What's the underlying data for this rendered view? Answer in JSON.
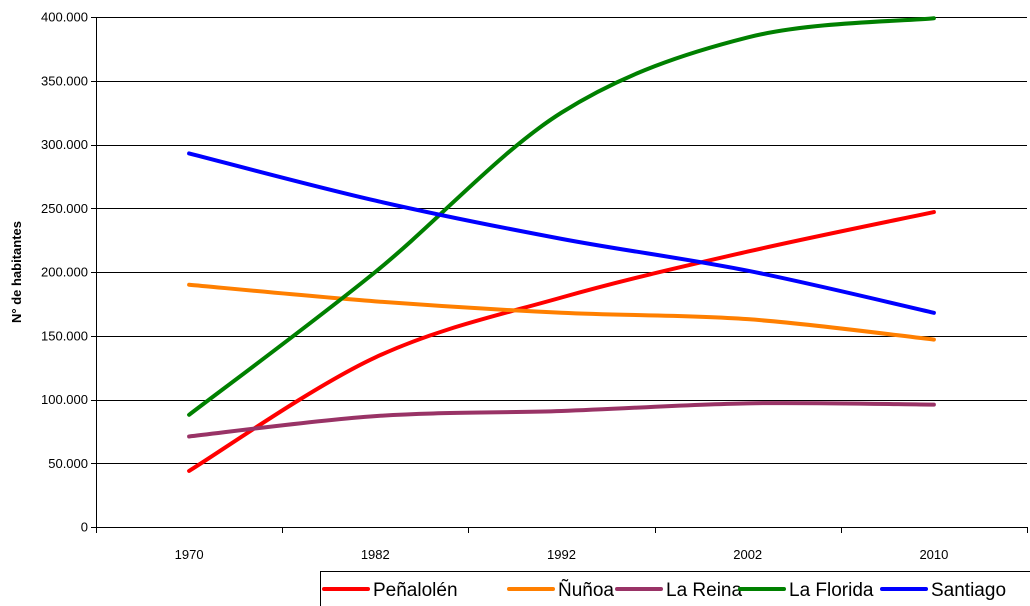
{
  "chart_data": {
    "type": "line",
    "title": "",
    "xlabel": "",
    "ylabel": "N° de habitantes",
    "categories": [
      "1970",
      "1982",
      "1992",
      "2002",
      "2010"
    ],
    "ylim": [
      0,
      400000
    ],
    "yticks": [
      0,
      50000,
      100000,
      150000,
      200000,
      250000,
      300000,
      350000,
      400000
    ],
    "ytick_labels": [
      "0",
      "50.000",
      "100.000",
      "150.000",
      "200.000",
      "250.000",
      "300.000",
      "350.000",
      "400.000"
    ],
    "grid": "horizontal",
    "legend_position": "bottom-right",
    "smooth": true,
    "series": [
      {
        "name": "Peñalolén",
        "color": "#ff0000",
        "values": [
          44000,
          133000,
          180000,
          216000,
          247000
        ]
      },
      {
        "name": "Ñuñoa",
        "color": "#ff7f00",
        "values": [
          190000,
          177000,
          168000,
          163000,
          147000
        ]
      },
      {
        "name": "La Reina",
        "color": "#993366",
        "values": [
          71000,
          87000,
          91000,
          97000,
          96000
        ]
      },
      {
        "name": "La Florida",
        "color": "#008000",
        "values": [
          88000,
          200000,
          325000,
          384000,
          399000
        ]
      },
      {
        "name": "Santiago",
        "color": "#0000ff",
        "values": [
          293000,
          256000,
          226000,
          201000,
          168000
        ]
      }
    ]
  }
}
